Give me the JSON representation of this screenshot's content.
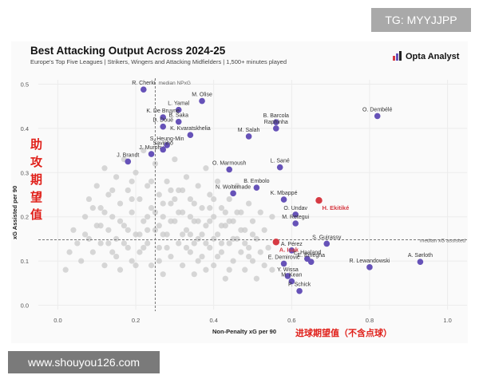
{
  "overlay": {
    "tag": "TG: MYYJJPP",
    "watermark": "www.shouyou126.com"
  },
  "header": {
    "title": "Best Attacking Output Across 2024-25",
    "subtitle": "Europe's Top Five Leagues | Strikers, Wingers and Attacking Midfielders | 1,500+ minutes played",
    "brand": "Opta Analyst"
  },
  "annotations": {
    "cn_y": "助攻期望值",
    "cn_x": "进球期望值（不含点球）"
  },
  "colors": {
    "highlight": "#d63a43",
    "labelled": "#6652b8",
    "background_points": "#c9c9c9",
    "median_line": "#777777"
  },
  "chart_data": {
    "type": "scatter",
    "xlabel": "Non-Penalty xG per 90",
    "ylabel": "xG Assisted per 90",
    "xlim": [
      -0.05,
      1.05
    ],
    "ylim": [
      -0.01,
      0.51
    ],
    "xticks": [
      "0.0",
      "0.2",
      "0.4",
      "0.6",
      "0.8",
      "1.0"
    ],
    "yticks": [
      "0.0",
      "0.1",
      "0.2",
      "0.3",
      "0.4",
      "0.5"
    ],
    "medians": {
      "x": 0.25,
      "y": 0.148,
      "x_label": "median NPxG",
      "y_label": "median xG assisted"
    },
    "labelled_points": [
      {
        "name": "R. Cherki",
        "x": 0.22,
        "y": 0.488
      },
      {
        "name": "M. Olise",
        "x": 0.37,
        "y": 0.462
      },
      {
        "name": "L. Yamal",
        "x": 0.31,
        "y": 0.442
      },
      {
        "name": "O. Dembélé",
        "x": 0.82,
        "y": 0.428
      },
      {
        "name": "K. De Bruyne",
        "x": 0.27,
        "y": 0.425
      },
      {
        "name": "B. Barcola",
        "x": 0.56,
        "y": 0.414
      },
      {
        "name": "B. Saka",
        "x": 0.31,
        "y": 0.415
      },
      {
        "name": "D. Doué",
        "x": 0.27,
        "y": 0.404
      },
      {
        "name": "Raphinha",
        "x": 0.56,
        "y": 0.4
      },
      {
        "name": "K. Kvaratskhelia",
        "x": 0.34,
        "y": 0.385
      },
      {
        "name": "M. Salah",
        "x": 0.49,
        "y": 0.382
      },
      {
        "name": "S. Heung-Min",
        "x": 0.28,
        "y": 0.362
      },
      {
        "name": "J. Murphy",
        "x": 0.24,
        "y": 0.342
      },
      {
        "name": "Savinho",
        "x": 0.27,
        "y": 0.352
      },
      {
        "name": "J. Brandt",
        "x": 0.18,
        "y": 0.325
      },
      {
        "name": "L. Sané",
        "x": 0.57,
        "y": 0.312
      },
      {
        "name": "O. Marmoush",
        "x": 0.44,
        "y": 0.307
      },
      {
        "name": "B. Embolo",
        "x": 0.51,
        "y": 0.266
      },
      {
        "name": "N. Woltemade",
        "x": 0.45,
        "y": 0.253
      },
      {
        "name": "K. Mbappé",
        "x": 0.58,
        "y": 0.239
      },
      {
        "name": "O. Undav",
        "x": 0.61,
        "y": 0.205
      },
      {
        "name": "M. Retegui",
        "x": 0.61,
        "y": 0.185
      },
      {
        "name": "S. Guirassy",
        "x": 0.69,
        "y": 0.139
      },
      {
        "name": "A. Pérez",
        "x": 0.6,
        "y": 0.124
      },
      {
        "name": "E. Haaland",
        "x": 0.64,
        "y": 0.105
      },
      {
        "name": "A. Isak",
        "x": 0.56,
        "y": 0.143
      },
      {
        "name": "E. Demirovic",
        "x": 0.58,
        "y": 0.094
      },
      {
        "name": "R. Lewandowski",
        "x": 0.8,
        "y": 0.086
      },
      {
        "name": "A. Sørloth",
        "x": 0.93,
        "y": 0.098
      },
      {
        "name": "E. Emegha",
        "x": 0.65,
        "y": 0.098
      },
      {
        "name": "Y. Wissa",
        "x": 0.59,
        "y": 0.066
      },
      {
        "name": "M. Kean",
        "x": 0.6,
        "y": 0.054
      },
      {
        "name": "P. Schick",
        "x": 0.62,
        "y": 0.032
      }
    ],
    "highlighted_points": [
      {
        "name": "H. Ekitiké",
        "x": 0.67,
        "y": 0.237
      },
      {
        "name": "A. Isak",
        "x": 0.56,
        "y": 0.143
      }
    ],
    "background_points": [
      [
        0.02,
        0.08
      ],
      [
        0.03,
        0.12
      ],
      [
        0.04,
        0.17
      ],
      [
        0.05,
        0.14
      ],
      [
        0.06,
        0.1
      ],
      [
        0.07,
        0.2
      ],
      [
        0.08,
        0.15
      ],
      [
        0.08,
        0.24
      ],
      [
        0.09,
        0.12
      ],
      [
        0.1,
        0.18
      ],
      [
        0.1,
        0.27
      ],
      [
        0.11,
        0.14
      ],
      [
        0.11,
        0.22
      ],
      [
        0.12,
        0.09
      ],
      [
        0.12,
        0.31
      ],
      [
        0.13,
        0.17
      ],
      [
        0.13,
        0.25
      ],
      [
        0.14,
        0.12
      ],
      [
        0.14,
        0.2
      ],
      [
        0.15,
        0.29
      ],
      [
        0.15,
        0.15
      ],
      [
        0.16,
        0.08
      ],
      [
        0.16,
        0.23
      ],
      [
        0.17,
        0.18
      ],
      [
        0.17,
        0.33
      ],
      [
        0.18,
        0.13
      ],
      [
        0.18,
        0.26
      ],
      [
        0.19,
        0.21
      ],
      [
        0.19,
        0.1
      ],
      [
        0.2,
        0.16
      ],
      [
        0.2,
        0.3
      ],
      [
        0.21,
        0.24
      ],
      [
        0.21,
        0.12
      ],
      [
        0.22,
        0.19
      ],
      [
        0.22,
        0.35
      ],
      [
        0.23,
        0.14
      ],
      [
        0.23,
        0.27
      ],
      [
        0.24,
        0.22
      ],
      [
        0.24,
        0.09
      ],
      [
        0.25,
        0.17
      ],
      [
        0.25,
        0.32
      ],
      [
        0.26,
        0.25
      ],
      [
        0.26,
        0.13
      ],
      [
        0.27,
        0.2
      ],
      [
        0.27,
        0.07
      ],
      [
        0.28,
        0.28
      ],
      [
        0.28,
        0.16
      ],
      [
        0.29,
        0.23
      ],
      [
        0.29,
        0.11
      ],
      [
        0.3,
        0.19
      ],
      [
        0.3,
        0.33
      ],
      [
        0.31,
        0.14
      ],
      [
        0.31,
        0.26
      ],
      [
        0.32,
        0.09
      ],
      [
        0.32,
        0.21
      ],
      [
        0.33,
        0.17
      ],
      [
        0.33,
        0.29
      ],
      [
        0.34,
        0.12
      ],
      [
        0.34,
        0.24
      ],
      [
        0.35,
        0.19
      ],
      [
        0.35,
        0.07
      ],
      [
        0.36,
        0.15
      ],
      [
        0.36,
        0.27
      ],
      [
        0.37,
        0.11
      ],
      [
        0.37,
        0.22
      ],
      [
        0.38,
        0.18
      ],
      [
        0.38,
        0.31
      ],
      [
        0.39,
        0.13
      ],
      [
        0.39,
        0.25
      ],
      [
        0.4,
        0.09
      ],
      [
        0.4,
        0.2
      ],
      [
        0.41,
        0.16
      ],
      [
        0.41,
        0.28
      ],
      [
        0.42,
        0.12
      ],
      [
        0.42,
        0.22
      ],
      [
        0.43,
        0.18
      ],
      [
        0.43,
        0.06
      ],
      [
        0.44,
        0.14
      ],
      [
        0.44,
        0.24
      ],
      [
        0.45,
        0.1
      ],
      [
        0.45,
        0.19
      ],
      [
        0.46,
        0.15
      ],
      [
        0.46,
        0.27
      ],
      [
        0.47,
        0.12
      ],
      [
        0.47,
        0.21
      ],
      [
        0.48,
        0.08
      ],
      [
        0.48,
        0.17
      ],
      [
        0.49,
        0.13
      ],
      [
        0.49,
        0.23
      ],
      [
        0.5,
        0.1
      ],
      [
        0.5,
        0.19
      ],
      [
        0.51,
        0.15
      ],
      [
        0.51,
        0.06
      ],
      [
        0.52,
        0.12
      ],
      [
        0.52,
        0.21
      ],
      [
        0.53,
        0.09
      ],
      [
        0.53,
        0.17
      ],
      [
        0.54,
        0.13
      ],
      [
        0.55,
        0.08
      ],
      [
        0.55,
        0.2
      ],
      [
        0.12,
        0.21
      ],
      [
        0.15,
        0.11
      ],
      [
        0.19,
        0.28
      ],
      [
        0.21,
        0.16
      ],
      [
        0.23,
        0.2
      ],
      [
        0.26,
        0.18
      ],
      [
        0.28,
        0.13
      ],
      [
        0.3,
        0.24
      ],
      [
        0.32,
        0.16
      ],
      [
        0.34,
        0.2
      ],
      [
        0.36,
        0.1
      ],
      [
        0.38,
        0.14
      ],
      [
        0.4,
        0.24
      ],
      [
        0.42,
        0.18
      ],
      [
        0.44,
        0.08
      ],
      [
        0.46,
        0.21
      ],
      [
        0.48,
        0.14
      ],
      [
        0.5,
        0.16
      ],
      [
        0.07,
        0.16
      ],
      [
        0.09,
        0.22
      ],
      [
        0.14,
        0.26
      ],
      [
        0.17,
        0.14
      ],
      [
        0.2,
        0.09
      ],
      [
        0.22,
        0.13
      ],
      [
        0.24,
        0.28
      ],
      [
        0.27,
        0.16
      ],
      [
        0.29,
        0.19
      ],
      [
        0.31,
        0.21
      ],
      [
        0.33,
        0.13
      ],
      [
        0.35,
        0.23
      ],
      [
        0.37,
        0.16
      ],
      [
        0.39,
        0.19
      ],
      [
        0.41,
        0.11
      ],
      [
        0.43,
        0.21
      ],
      [
        0.45,
        0.15
      ],
      [
        0.47,
        0.17
      ],
      [
        0.49,
        0.11
      ],
      [
        0.16,
        0.19
      ],
      [
        0.18,
        0.17
      ],
      [
        0.25,
        0.21
      ],
      [
        0.26,
        0.1
      ],
      [
        0.29,
        0.26
      ],
      [
        0.32,
        0.26
      ],
      [
        0.35,
        0.14
      ],
      [
        0.38,
        0.08
      ],
      [
        0.4,
        0.15
      ],
      [
        0.11,
        0.18
      ],
      [
        0.13,
        0.14
      ],
      [
        0.19,
        0.24
      ],
      [
        0.23,
        0.17
      ],
      [
        0.27,
        0.23
      ],
      [
        0.34,
        0.16
      ],
      [
        0.36,
        0.19
      ],
      [
        0.39,
        0.22
      ],
      [
        0.42,
        0.14
      ],
      [
        0.44,
        0.19
      ]
    ]
  }
}
